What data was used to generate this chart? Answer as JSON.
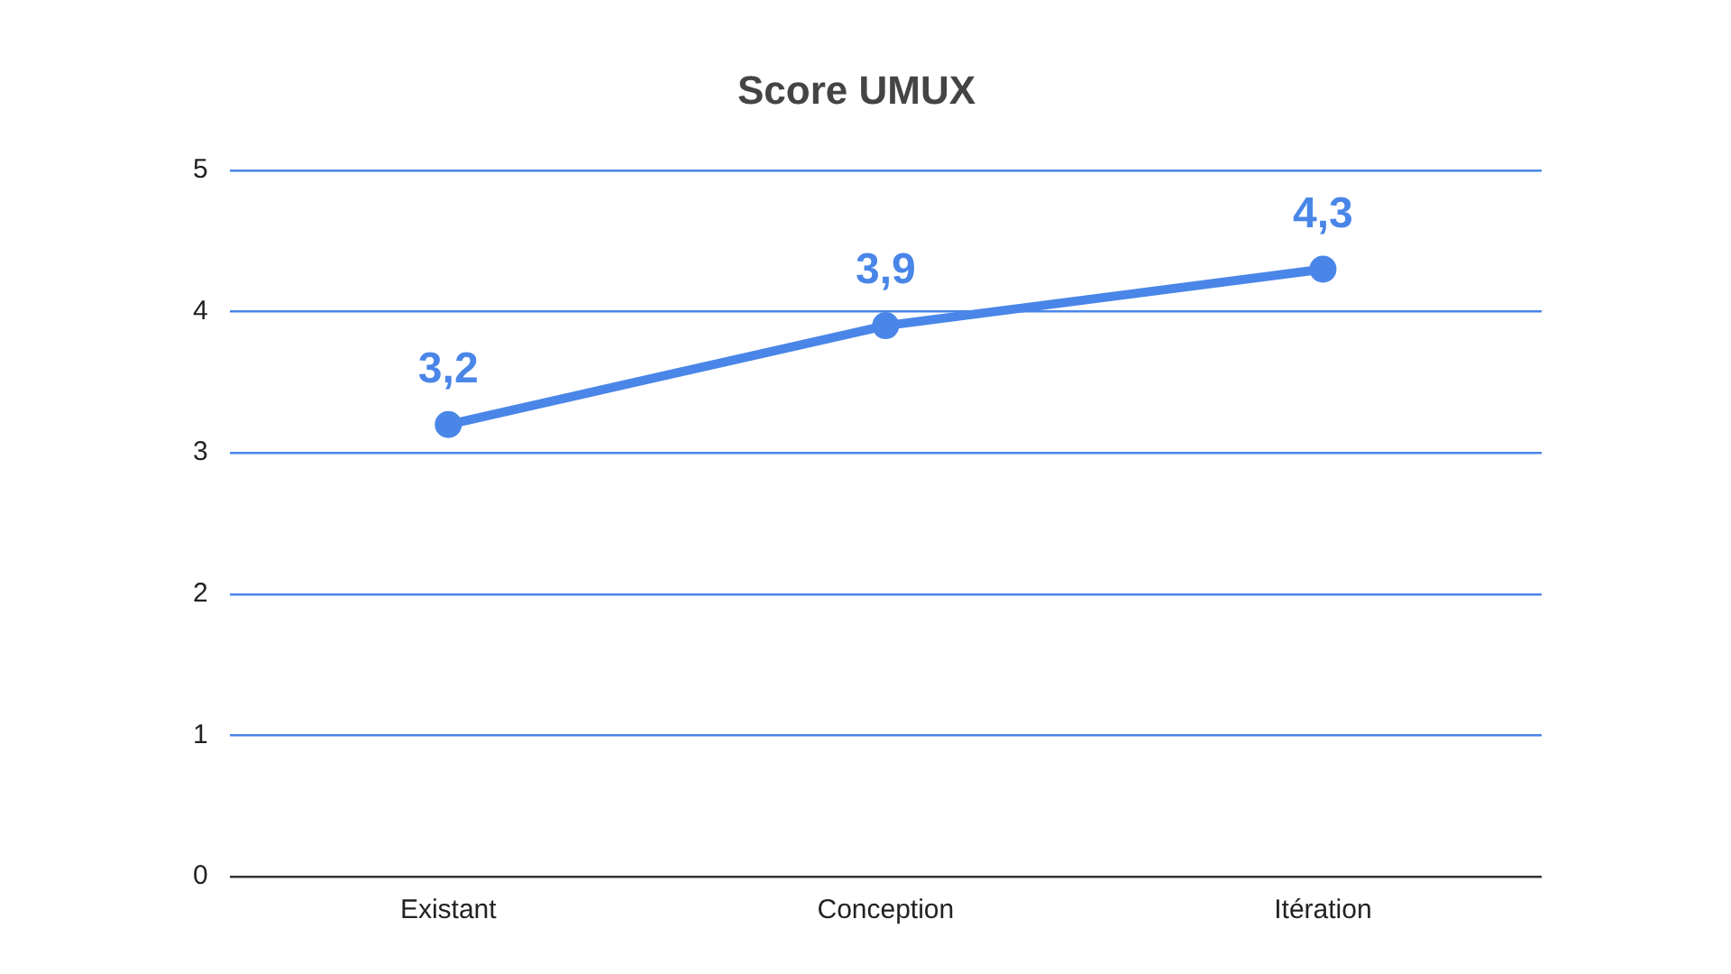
{
  "chart_data": {
    "type": "line",
    "title": "Score UMUX",
    "categories": [
      "Existant",
      "Conception",
      "Itération"
    ],
    "series": [
      {
        "color": "#4a86e8",
        "values": [
          3.2,
          3.9,
          4.3
        ],
        "value_labels": [
          "3,2",
          "3,9",
          "4,3"
        ]
      }
    ],
    "ylim": [
      0,
      5
    ],
    "yticks": [
      0,
      1,
      2,
      3,
      4,
      5
    ],
    "grid": "y",
    "marker": "circle",
    "line_style": "solid",
    "legend": false
  }
}
